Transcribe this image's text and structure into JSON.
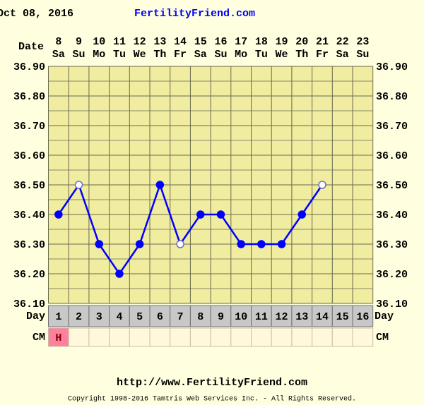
{
  "chart_data": {
    "type": "line",
    "header_date": "Oct 08, 2016",
    "site": "FertilityFriend.com",
    "date_label": "Date",
    "dates": [
      8,
      9,
      10,
      11,
      12,
      13,
      14,
      15,
      16,
      17,
      18,
      19,
      20,
      21,
      22,
      23
    ],
    "weekdays": [
      "Sa",
      "Su",
      "Mo",
      "Tu",
      "We",
      "Th",
      "Fr",
      "Sa",
      "Su",
      "Mo",
      "Tu",
      "We",
      "Th",
      "Fr",
      "Sa",
      "Su"
    ],
    "day_label": "Day",
    "categories": [
      1,
      2,
      3,
      4,
      5,
      6,
      7,
      8,
      9,
      10,
      11,
      12,
      13,
      14,
      15,
      16
    ],
    "cm_label": "CM",
    "cm": [
      "H",
      null,
      null,
      null,
      null,
      null,
      null,
      null,
      null,
      null,
      null,
      null,
      null,
      null,
      null,
      null
    ],
    "series": [
      {
        "color": "#0000ff",
        "values": [
          36.4,
          36.5,
          36.3,
          36.2,
          36.3,
          36.5,
          36.3,
          36.4,
          36.4,
          36.3,
          36.3,
          36.3,
          36.4,
          36.5,
          null,
          null
        ],
        "open": [
          false,
          true,
          false,
          false,
          false,
          false,
          true,
          false,
          false,
          false,
          false,
          false,
          false,
          true,
          false,
          false
        ]
      }
    ],
    "ylim": [
      36.1,
      36.9
    ],
    "yticks": [
      {
        "value": 36.1,
        "label": "36.10"
      },
      {
        "value": 36.2,
        "label": "36.20"
      },
      {
        "value": 36.3,
        "label": "36.30"
      },
      {
        "value": 36.4,
        "label": "36.40"
      },
      {
        "value": 36.5,
        "label": "36.50"
      },
      {
        "value": 36.6,
        "label": "36.60"
      },
      {
        "value": 36.7,
        "label": "36.70"
      },
      {
        "value": 36.8,
        "label": "36.80"
      },
      {
        "value": 36.9,
        "label": "36.90"
      }
    ],
    "minor_yticks": [
      36.15,
      36.25,
      36.35,
      36.45,
      36.55,
      36.65,
      36.75,
      36.85
    ],
    "grid": true,
    "footer_url": "http://www.FertilityFriend.com",
    "copyright": "Copyright 1998-2016 Tamtris Web Services Inc. - All Rights Reserved."
  }
}
